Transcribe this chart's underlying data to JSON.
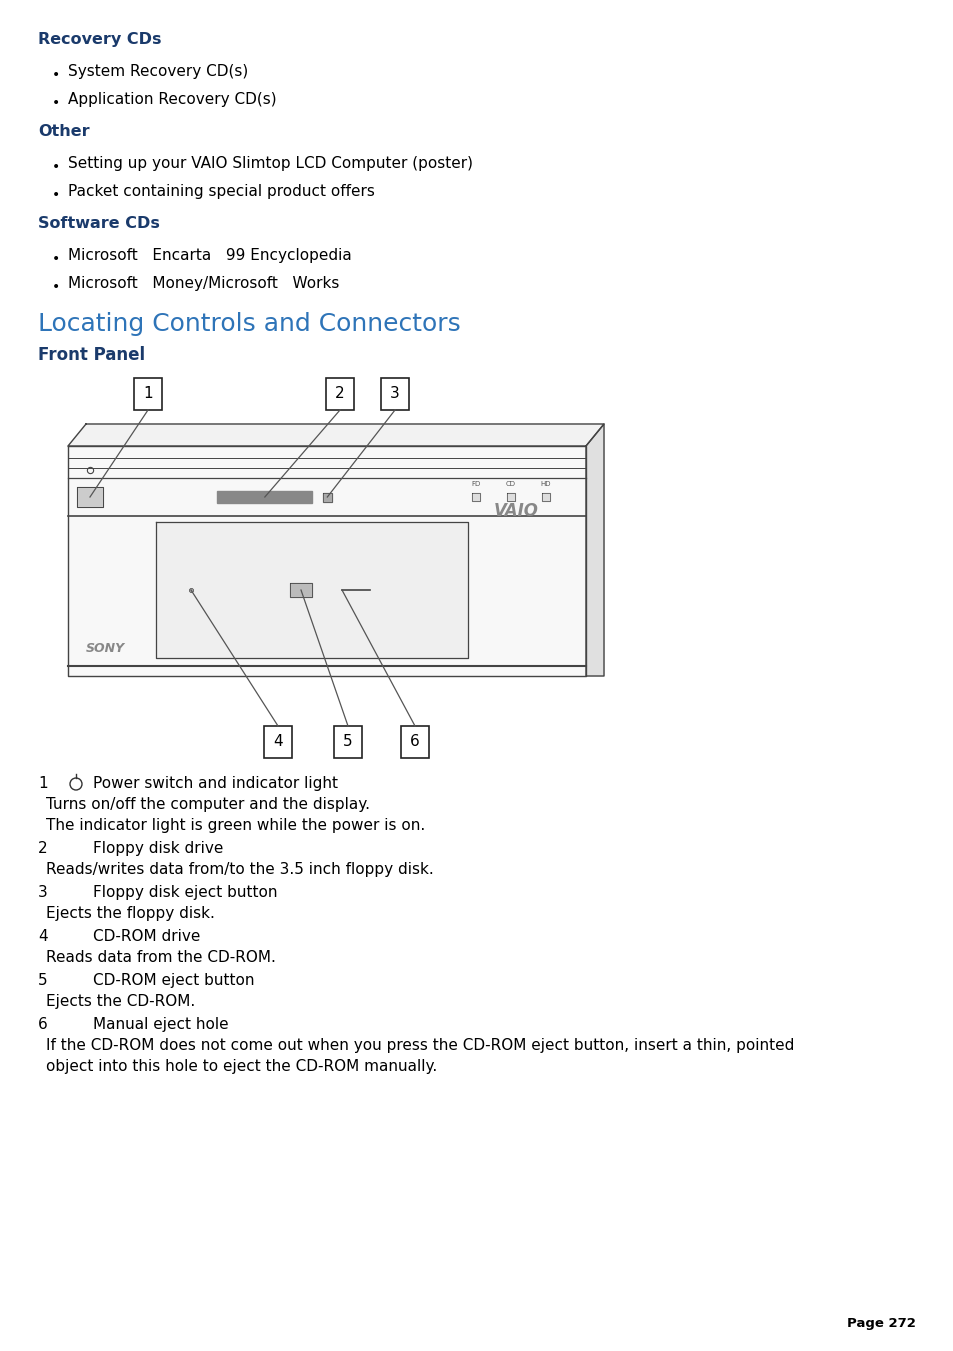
{
  "bg_color": "#ffffff",
  "heading_color": "#1a3a6b",
  "big_heading_color": "#2e6da4",
  "text_color": "#000000",
  "line_color": "#444444",
  "page_number": "Page 272",
  "sections": [
    {
      "type": "bold_heading",
      "text": "Recovery CDs",
      "color": "#1a3a6b",
      "fontsize": 11.5
    },
    {
      "type": "bullet",
      "text": "System Recovery CD(s)",
      "fontsize": 11
    },
    {
      "type": "bullet",
      "text": "Application Recovery CD(s)",
      "fontsize": 11
    },
    {
      "type": "bold_heading",
      "text": "Other",
      "color": "#1a3a6b",
      "fontsize": 11.5
    },
    {
      "type": "bullet",
      "text": "Setting up your VAIO Slimtop LCD Computer (poster)",
      "fontsize": 11
    },
    {
      "type": "bullet",
      "text": "Packet containing special product offers",
      "fontsize": 11
    },
    {
      "type": "bold_heading",
      "text": "Software CDs",
      "color": "#1a3a6b",
      "fontsize": 11.5
    },
    {
      "type": "bullet",
      "text": "Microsoft   Encarta   99 Encyclopedia",
      "fontsize": 11
    },
    {
      "type": "bullet",
      "text": "Microsoft   Money/Microsoft   Works",
      "fontsize": 11
    }
  ],
  "big_heading": {
    "text": "Locating Controls and Connectors",
    "color": "#2e74b8",
    "fontsize": 18
  },
  "front_panel_heading": {
    "text": "Front Panel",
    "color": "#1a3a6b",
    "fontsize": 12
  },
  "desc_items": [
    {
      "num": "1",
      "title": "Power switch and indicator light",
      "has_power_icon": true,
      "lines": [
        "Turns on/off the computer and the display.",
        "The indicator light is green while the power is on."
      ]
    },
    {
      "num": "2",
      "title": "Floppy disk drive",
      "has_power_icon": false,
      "lines": [
        "Reads/writes data from/to the 3.5 inch floppy disk."
      ]
    },
    {
      "num": "3",
      "title": "Floppy disk eject button",
      "has_power_icon": false,
      "lines": [
        "Ejects the floppy disk."
      ]
    },
    {
      "num": "4",
      "title": "CD-ROM drive",
      "has_power_icon": false,
      "lines": [
        "Reads data from the CD-ROM."
      ]
    },
    {
      "num": "5",
      "title": "CD-ROM eject button",
      "has_power_icon": false,
      "lines": [
        "Ejects the CD-ROM."
      ]
    },
    {
      "num": "6",
      "title": "Manual eject hole",
      "has_power_icon": false,
      "lines": [
        "If the CD-ROM does not come out when you press the CD-ROM eject button, insert a thin, pointed",
        "object into this hole to eject the CD-ROM manually."
      ]
    }
  ]
}
